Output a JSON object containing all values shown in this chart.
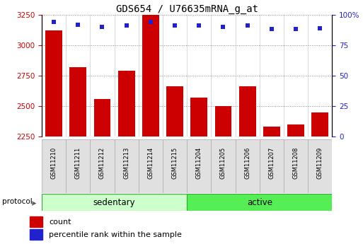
{
  "title": "GDS654 / U76635mRNA_g_at",
  "samples": [
    "GSM11210",
    "GSM11211",
    "GSM11212",
    "GSM11213",
    "GSM11214",
    "GSM11215",
    "GSM11204",
    "GSM11205",
    "GSM11206",
    "GSM11207",
    "GSM11208",
    "GSM11209"
  ],
  "counts": [
    3120,
    2820,
    2560,
    2790,
    3250,
    2660,
    2570,
    2500,
    2660,
    2330,
    2350,
    2450
  ],
  "percentile_ranks": [
    94,
    92,
    90,
    91,
    94,
    91,
    91,
    90,
    91,
    88,
    88,
    89
  ],
  "bar_color": "#cc0000",
  "dot_color": "#2222cc",
  "ylim_left": [
    2250,
    3250
  ],
  "ylim_right": [
    0,
    100
  ],
  "yticks_left": [
    2250,
    2500,
    2750,
    3000,
    3250
  ],
  "yticks_right": [
    0,
    25,
    50,
    75,
    100
  ],
  "protocol_groups": [
    {
      "label": "sedentary",
      "start": 0,
      "end": 6,
      "color": "#ccffcc"
    },
    {
      "label": "active",
      "start": 6,
      "end": 12,
      "color": "#55ee55"
    }
  ],
  "protocol_label": "protocol",
  "legend_count_label": "count",
  "legend_pct_label": "percentile rank within the sample",
  "grid_color": "#888888",
  "bg_color": "#ffffff",
  "title_fontsize": 10,
  "tick_fontsize": 7.5,
  "sample_fontsize": 6,
  "legend_fontsize": 8
}
